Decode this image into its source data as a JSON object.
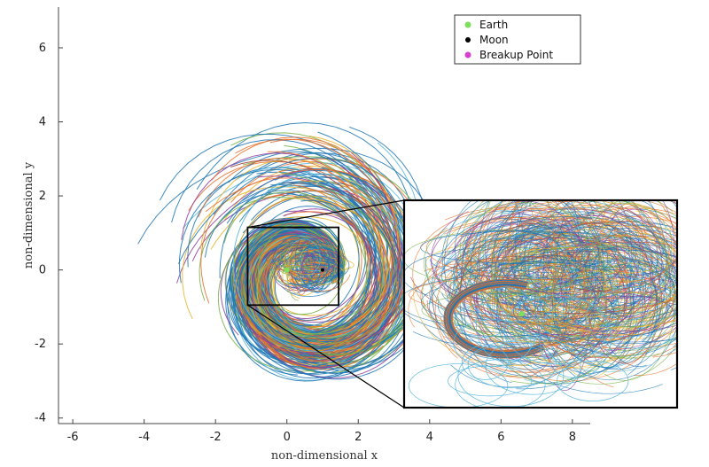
{
  "chart_data": {
    "type": "line",
    "title": "",
    "xlabel": "non-dimensional x",
    "ylabel": "non-dimensional y",
    "xlim": [
      -6.4,
      8.5
    ],
    "ylim": [
      -4.15,
      7.1
    ],
    "xticks": [
      -6,
      -4,
      -2,
      0,
      2,
      4,
      6,
      8
    ],
    "yticks": [
      -4,
      -2,
      0,
      2,
      4,
      6
    ],
    "grid": false,
    "legend_position": "top-right",
    "legend": [
      {
        "name": "Earth",
        "color": "#7be05a"
      },
      {
        "name": "Moon",
        "color": "#000000"
      },
      {
        "name": "Breakup Point",
        "color": "#d63fd0"
      }
    ],
    "points": {
      "earth": [
        0,
        0
      ],
      "moon": [
        1,
        0
      ],
      "breakup": [
        0.5,
        0.87
      ]
    },
    "series_colors": [
      "#1f77b4",
      "#e8702a",
      "#e7b42b",
      "#8e3c9e",
      "#77b14a",
      "#5bb8de",
      "#a23c3c"
    ],
    "inset": {
      "xlim": [
        -1.1,
        1.45
      ],
      "ylim": [
        -0.95,
        1.15
      ]
    }
  }
}
